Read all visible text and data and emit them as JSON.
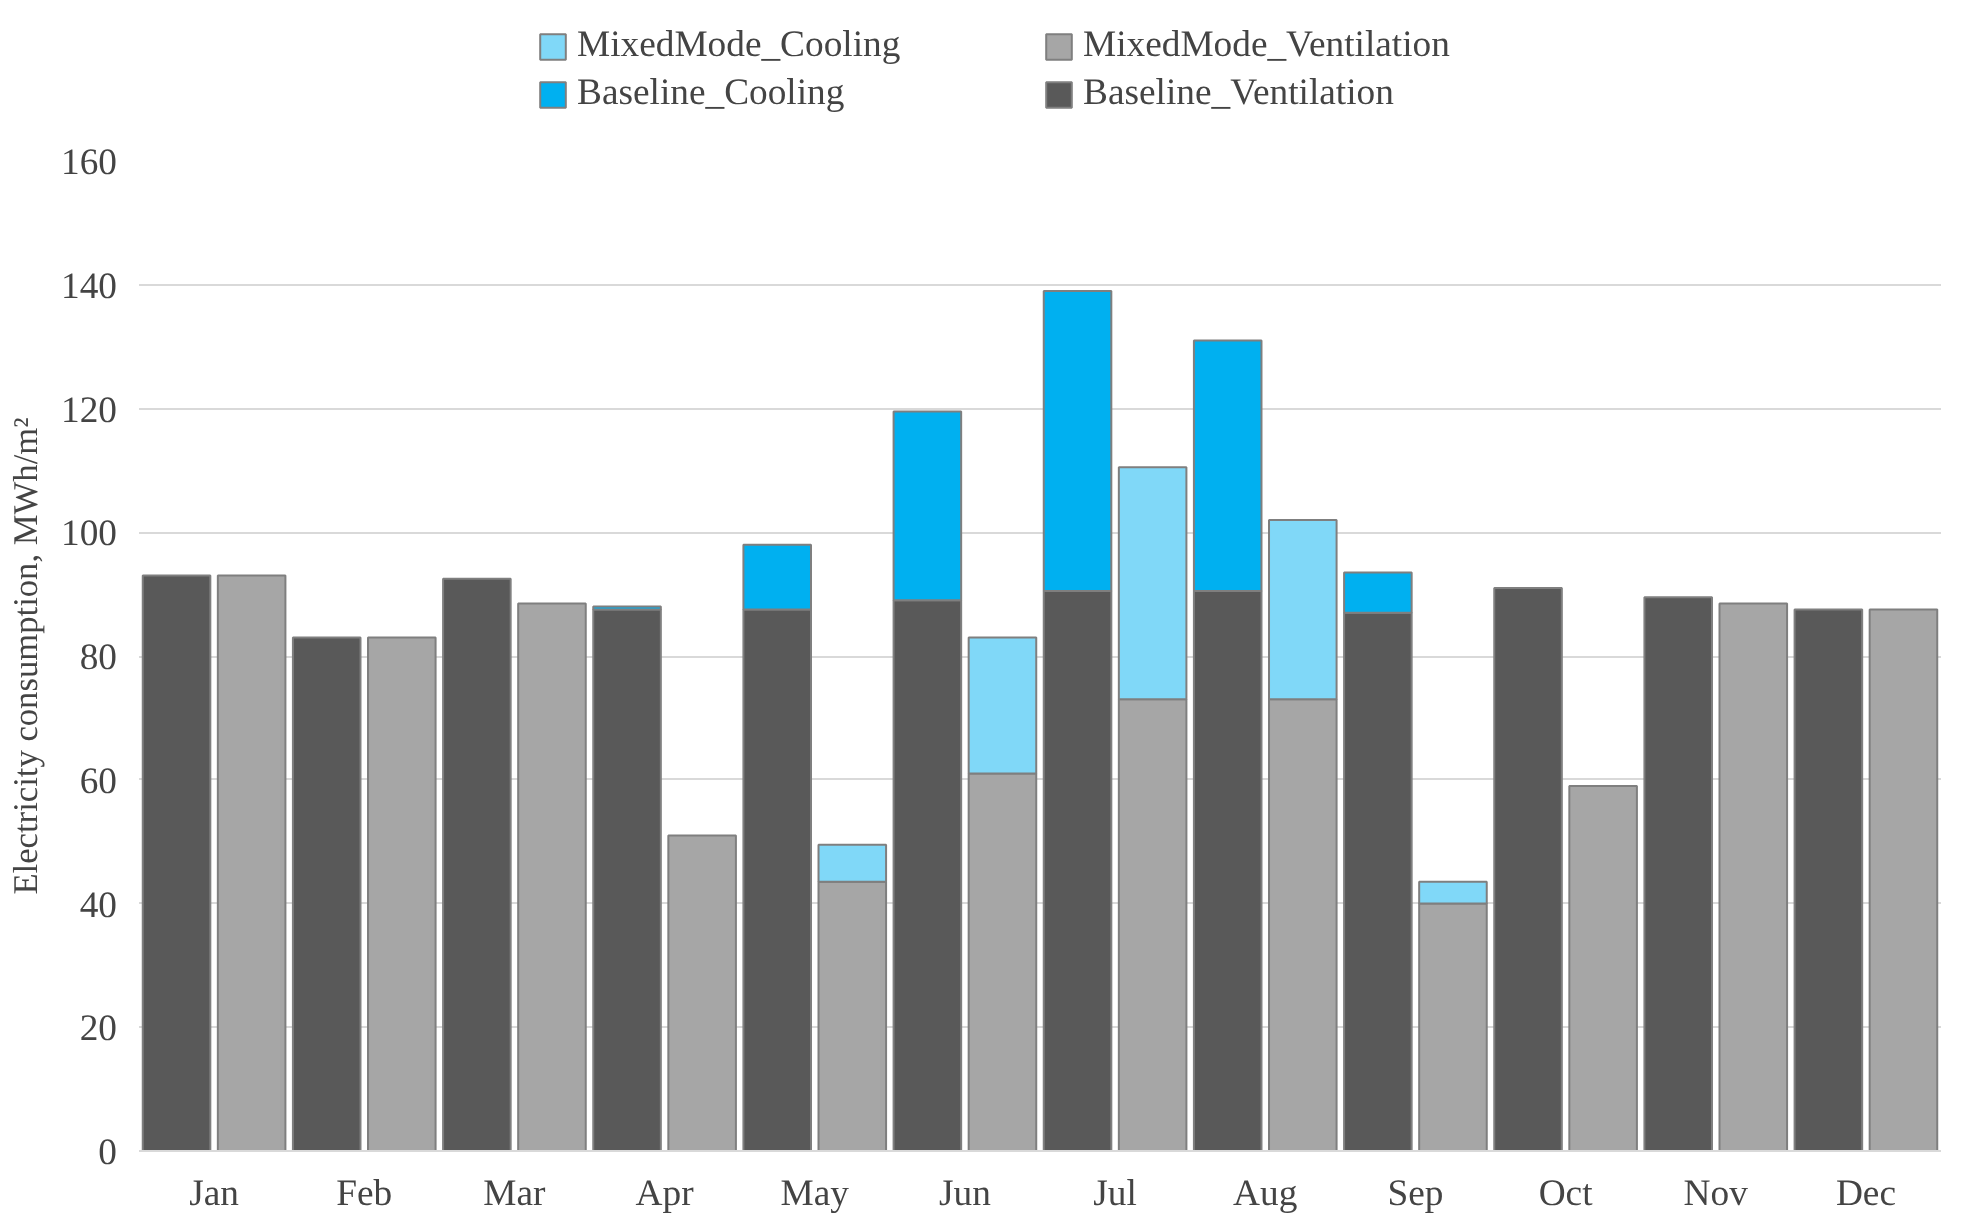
{
  "chart_data": {
    "type": "bar",
    "stacked": true,
    "ylabel": "Electricity consumption, MWh/m²",
    "categories": [
      "Jan",
      null,
      "Feb",
      null,
      "Mar",
      null,
      "Apr",
      null,
      "May",
      null,
      "Jun",
      null,
      "Jul",
      null,
      "Aug",
      null,
      "Sep",
      null,
      "Oct",
      null,
      "Nov",
      null,
      "Dec",
      null
    ],
    "series": [
      {
        "name": "Baseline_Ventilation",
        "color": "#595959",
        "values": [
          93,
          null,
          83,
          null,
          92.5,
          null,
          87.5,
          null,
          87.5,
          null,
          89,
          null,
          90.5,
          null,
          90.5,
          null,
          87,
          null,
          91,
          null,
          89.5,
          null,
          87.5,
          null
        ]
      },
      {
        "name": "Baseline_Cooling",
        "color": "#00b0f0",
        "values": [
          null,
          null,
          null,
          null,
          null,
          null,
          0.5,
          null,
          10.5,
          null,
          30.5,
          null,
          48.5,
          null,
          40.5,
          null,
          6.5,
          null,
          null,
          null,
          null,
          null,
          null,
          null
        ]
      },
      {
        "name": "MixedMode_Ventilation",
        "color": "#a6a6a6",
        "values": [
          null,
          93,
          null,
          83,
          null,
          88.5,
          null,
          51,
          null,
          43.5,
          null,
          61,
          null,
          73,
          null,
          73,
          null,
          40,
          null,
          59,
          null,
          88.5,
          null,
          87.5
        ]
      },
      {
        "name": "MixedMode_Cooling",
        "color": "#80d8f8",
        "values": [
          null,
          null,
          null,
          null,
          null,
          null,
          null,
          null,
          null,
          6,
          null,
          22,
          null,
          37.5,
          null,
          29,
          null,
          3.5,
          null,
          null,
          null,
          null,
          null,
          null
        ]
      }
    ],
    "ylim": [
      0,
      160
    ],
    "yticks": [
      0,
      20,
      40,
      60,
      80,
      100,
      120,
      140,
      160
    ],
    "grid": "y",
    "legend": "top"
  }
}
